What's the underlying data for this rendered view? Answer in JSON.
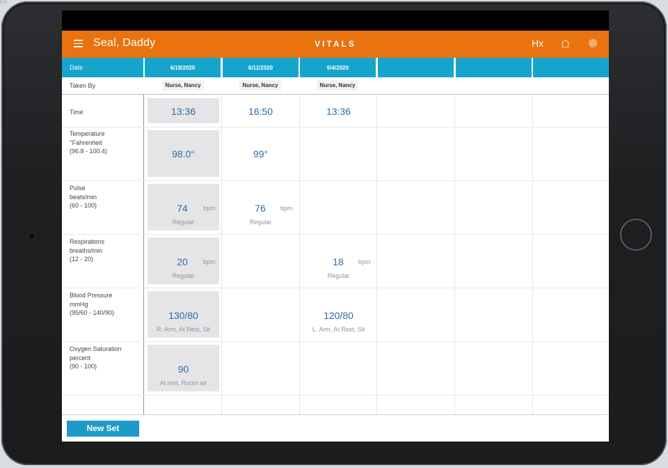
{
  "browser_corner_text": "0.il",
  "header": {
    "patient_name": "Seal, Daddy",
    "title": "VITALS",
    "hx_label": "Hx"
  },
  "columns": {
    "date_label": "Date",
    "taken_by_label": "Taken By",
    "dates": [
      "6/18/2020",
      "6/11/2020",
      "6/4/2020"
    ],
    "taken_by": [
      "Nurse, Nancy",
      "Nurse, Nancy",
      "Nurse, Nancy"
    ]
  },
  "rows": {
    "time": {
      "label": "Time",
      "values": [
        "13:36",
        "16:50",
        "13:36"
      ]
    },
    "temperature": {
      "label_lines": [
        "Temperature",
        "°Fahrenheit",
        "(96.8 - 100.4)"
      ],
      "values": [
        "98.0°",
        "99°",
        ""
      ]
    },
    "pulse": {
      "label_lines": [
        "Pulse",
        "beats/min",
        "(60 - 100)"
      ],
      "values": [
        "74",
        "76",
        ""
      ],
      "unit": "bpm",
      "notes": [
        "Regular",
        "Regular",
        ""
      ]
    },
    "respirations": {
      "label_lines": [
        "Respirations",
        "breaths/min",
        "(12 - 20)"
      ],
      "values": [
        "20",
        "",
        "18"
      ],
      "unit": "bpm",
      "notes": [
        "Regular",
        "",
        "Regular"
      ]
    },
    "blood_pressure": {
      "label_lines": [
        "Blood Pressure",
        "mmHg",
        "(95/60 - 140/90)"
      ],
      "values": [
        "130/80",
        "",
        "120/80"
      ],
      "notes": [
        "R. Arm, At Rest, Sit",
        "",
        "L. Arm, At Rest, Sit"
      ]
    },
    "oxygen": {
      "label_lines": [
        "Oxygen Saturation",
        "percent",
        "(90 - 100)"
      ],
      "values": [
        "90",
        "",
        ""
      ],
      "notes": [
        "At rest, Room air",
        "",
        ""
      ]
    }
  },
  "footer": {
    "new_set_label": "New Set"
  },
  "colors": {
    "header_orange": "#e8730f",
    "column_blue": "#17a4cc",
    "value_blue": "#2e6aa1",
    "button_blue": "#1f9ac6"
  },
  "icons": {
    "menu": "hamburger-icon",
    "home": "home-icon",
    "settings": "gear-icon"
  }
}
